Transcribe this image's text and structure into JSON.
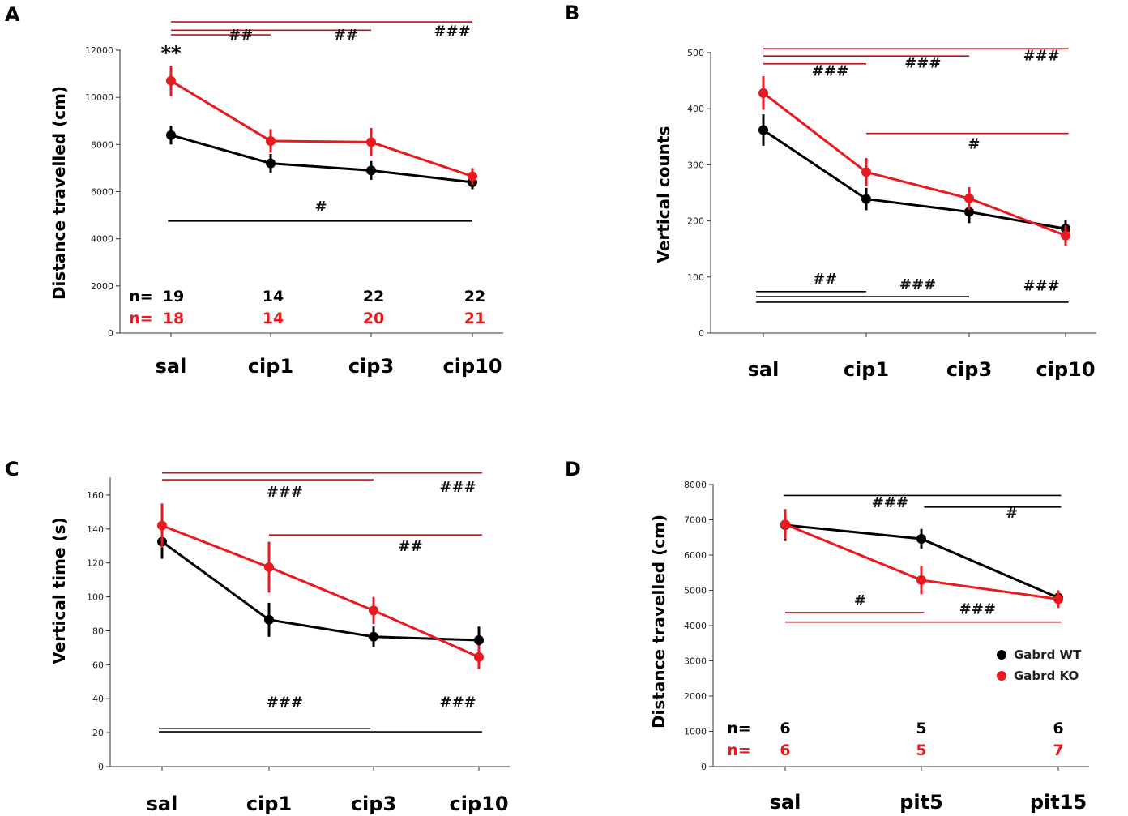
{
  "colors": {
    "wt": "#000000",
    "ko": "#e8191f",
    "ko_line": "#c0101a",
    "axis": "#333333"
  },
  "legend": [
    {
      "label": "Gabrd WT",
      "series": "wt"
    },
    {
      "label": "Gabrd KO",
      "series": "ko"
    }
  ],
  "chart_data": [
    {
      "panel": "A",
      "type": "line",
      "title": "",
      "ylabel": "Distance travelled (cm)",
      "xlabel": "",
      "categories": [
        "sal",
        "cip1",
        "cip3",
        "cip10"
      ],
      "ylim": [
        0,
        12000
      ],
      "yticks": [
        0,
        2000,
        4000,
        6000,
        8000,
        10000,
        12000
      ],
      "series": [
        {
          "name": "Gabrd WT",
          "key": "wt",
          "values": [
            8400,
            7200,
            6900,
            6400
          ],
          "err": [
            400,
            400,
            400,
            300
          ]
        },
        {
          "name": "Gabrd KO",
          "key": "ko",
          "values": [
            10700,
            8150,
            8100,
            6650
          ],
          "err": [
            650,
            500,
            600,
            350
          ]
        }
      ],
      "annotations": [
        {
          "text": "**",
          "color": "wt",
          "at_cat": 0,
          "at_y": 11600
        }
      ],
      "sig": [
        {
          "color": "ko",
          "lines": [
            [
              0,
              3,
              13200
            ],
            [
              0,
              2,
              12850
            ],
            [
              0,
              1,
              12650
            ]
          ],
          "labels": [
            [
              "##",
              0.7,
              12450
            ],
            [
              "###",
              2.8,
              12600
            ],
            [
              "##",
              1.75,
              12450
            ]
          ]
        },
        {
          "color": "wt",
          "lines": [
            [
              -0.03,
              3.0,
              4750
            ]
          ],
          "labels": [
            [
              "#",
              1.5,
              5150
            ]
          ]
        }
      ],
      "n": {
        "wt": [
          "19",
          "14",
          "22",
          "22"
        ],
        "ko": [
          "18",
          "14",
          "20",
          "21"
        ],
        "label": "n="
      }
    },
    {
      "panel": "B",
      "type": "line",
      "ylabel": "Vertical counts",
      "xlabel": "",
      "categories": [
        "sal",
        "cip1",
        "cip3",
        "cip10"
      ],
      "ylim": [
        0,
        500
      ],
      "yticks": [
        0,
        100,
        200,
        300,
        400,
        500
      ],
      "series": [
        {
          "name": "Gabrd WT",
          "key": "wt",
          "values": [
            362,
            239,
            216,
            186
          ],
          "err": [
            28,
            20,
            20,
            15
          ]
        },
        {
          "name": "Gabrd KO",
          "key": "ko",
          "values": [
            428,
            287,
            240,
            174
          ],
          "err": [
            30,
            25,
            20,
            18
          ]
        }
      ],
      "annotations": [],
      "sig": [
        {
          "color": "ko",
          "lines": [
            [
              0,
              3.03,
              507
            ],
            [
              0,
              2,
              494
            ],
            [
              0,
              1,
              480
            ],
            [
              1,
              3.03,
              356
            ]
          ],
          "labels": [
            [
              "###",
              0.65,
              459
            ],
            [
              "###",
              1.55,
              473
            ],
            [
              "###",
              2.75,
              486
            ],
            [
              "#",
              2.05,
              329
            ]
          ]
        },
        {
          "color": "wt",
          "lines": [
            [
              -0.07,
              1,
              74
            ],
            [
              -0.07,
              2,
              65
            ],
            [
              -0.07,
              3.03,
              55
            ]
          ],
          "labels": [
            [
              "##",
              0.6,
              88
            ],
            [
              "###",
              1.5,
              78
            ],
            [
              "###",
              2.75,
              76
            ]
          ]
        }
      ],
      "n": null
    },
    {
      "panel": "C",
      "type": "line",
      "ylabel": "Vertical time (s)",
      "xlabel": "",
      "categories": [
        "sal",
        "cip1",
        "cip3",
        "cip10"
      ],
      "ylim": [
        0,
        170
      ],
      "yticks": [
        0,
        20,
        40,
        60,
        80,
        100,
        120,
        140,
        160
      ],
      "series": [
        {
          "name": "Gabrd WT",
          "key": "wt",
          "values": [
            132.5,
            86.5,
            76.5,
            74.5
          ],
          "err": [
            10,
            10,
            6,
            8
          ]
        },
        {
          "name": "Gabrd KO",
          "key": "ko",
          "values": [
            142,
            117.5,
            92,
            64.5
          ],
          "err": [
            13,
            15,
            8,
            7
          ]
        }
      ],
      "annotations": [],
      "sig": [
        {
          "color": "ko",
          "lines": [
            [
              0,
              3.03,
              173
            ],
            [
              0,
              2,
              169
            ],
            [
              1,
              3.03,
              136.5
            ]
          ],
          "labels": [
            [
              "###",
              1.15,
              159
            ],
            [
              "###",
              2.8,
              162
            ],
            [
              "##",
              2.35,
              127
            ]
          ]
        },
        {
          "color": "wt",
          "lines": [
            [
              -0.03,
              1.97,
              22.5
            ],
            [
              -0.03,
              3.03,
              20.5
            ]
          ],
          "labels": [
            [
              "###",
              1.15,
              35
            ],
            [
              "###",
              2.8,
              35
            ]
          ]
        }
      ],
      "n": null
    },
    {
      "panel": "D",
      "type": "line",
      "ylabel": "Distance travelled (cm)",
      "xlabel": "",
      "categories": [
        "sal",
        "pit5",
        "pit15"
      ],
      "ylim": [
        0,
        8000
      ],
      "yticks": [
        0,
        1000,
        2000,
        3000,
        4000,
        5000,
        6000,
        7000,
        8000
      ],
      "series": [
        {
          "name": "Gabrd WT",
          "key": "wt",
          "values": [
            6850,
            6460,
            4790
          ],
          "err": [
            450,
            280,
            150
          ]
        },
        {
          "name": "Gabrd KO",
          "key": "ko",
          "values": [
            6870,
            5290,
            4750
          ],
          "err": [
            420,
            400,
            250
          ]
        }
      ],
      "annotations": [],
      "sig": [
        {
          "color": "wt",
          "lines": [
            [
              -0.01,
              2.02,
              7690
            ],
            [
              1.02,
              2.02,
              7360
            ]
          ],
          "labels": [
            [
              "###",
              0.77,
              7360
            ],
            [
              "#",
              1.66,
              7060
            ]
          ]
        },
        {
          "color": "ko",
          "lines": [
            [
              0,
              1.02,
              4370
            ],
            [
              0,
              2.02,
              4100
            ]
          ],
          "labels": [
            [
              "#",
              0.55,
              4580
            ],
            [
              "###",
              1.41,
              4330
            ]
          ]
        }
      ],
      "n": {
        "wt": [
          "6",
          "5",
          "6"
        ],
        "ko": [
          "6",
          "5",
          "7"
        ],
        "label": "n="
      }
    }
  ]
}
